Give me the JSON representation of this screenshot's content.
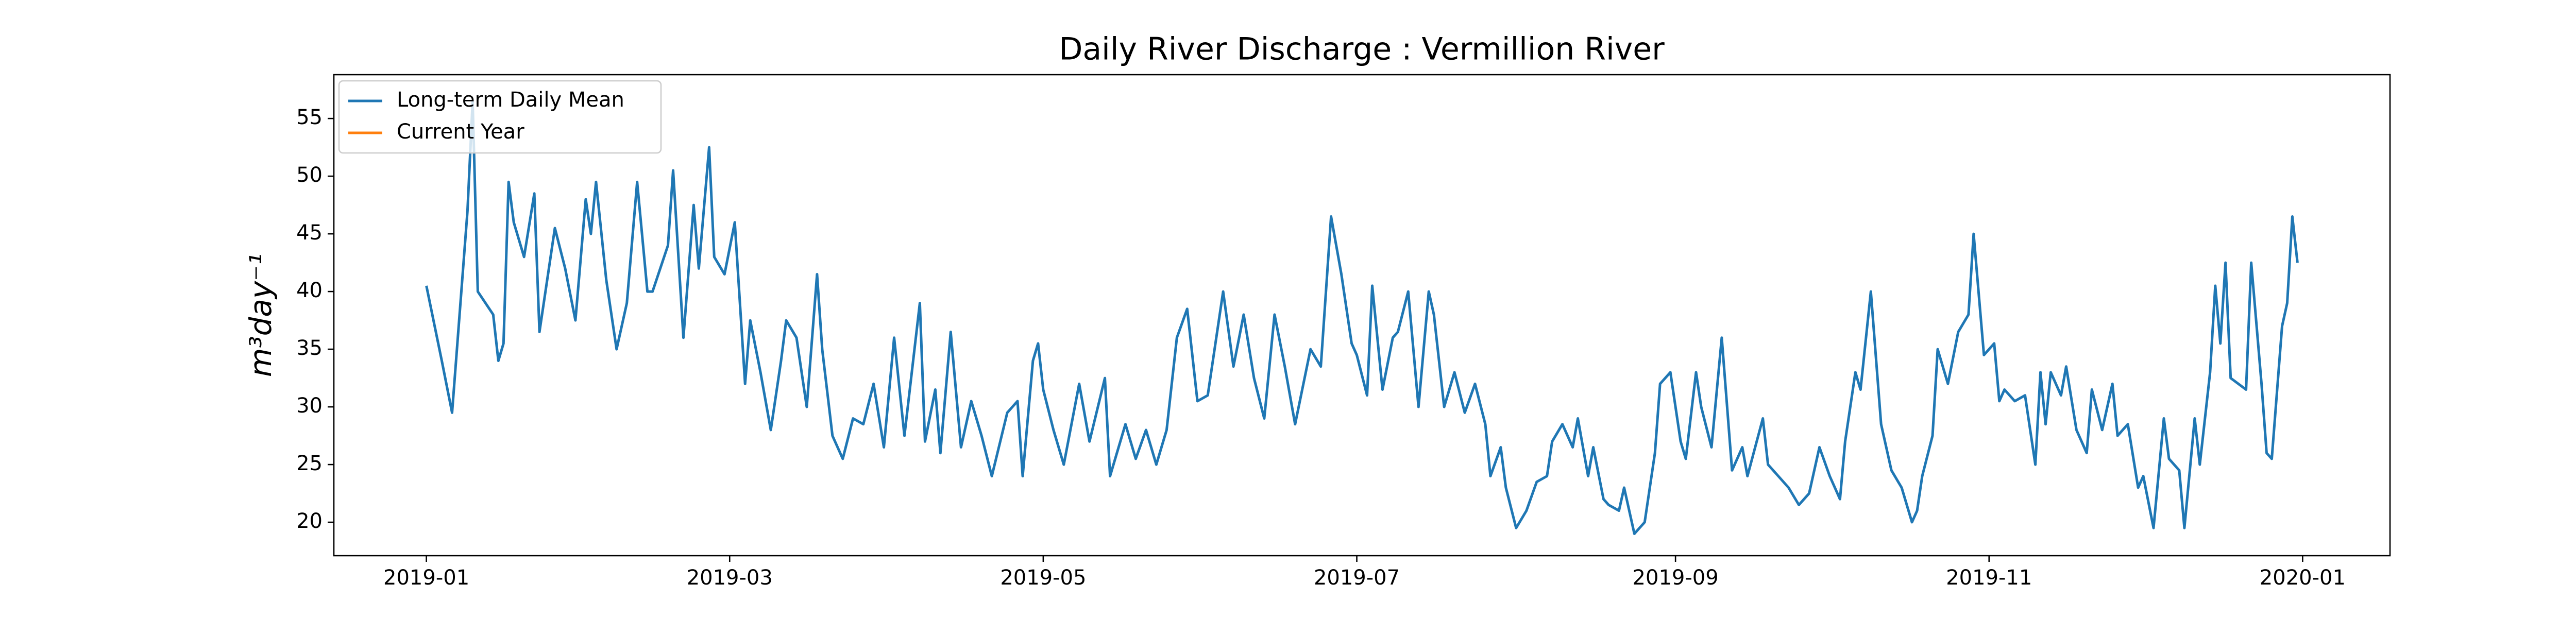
{
  "chart_data": {
    "type": "line",
    "title": "Daily River Discharge : Vermillion River",
    "ylabel": "m³day⁻¹",
    "x": [
      0,
      3,
      5,
      8,
      9,
      10,
      13,
      14,
      15,
      16,
      17,
      19,
      21,
      22,
      25,
      27,
      29,
      31,
      32,
      33,
      35,
      37,
      39,
      41,
      43,
      44,
      47,
      48,
      50,
      52,
      53,
      55,
      56,
      58,
      60,
      62,
      63,
      65,
      67,
      69,
      70,
      72,
      74,
      76,
      77,
      79,
      81,
      83,
      85,
      87,
      89,
      91,
      93,
      96,
      97,
      99,
      100,
      102,
      104,
      106,
      108,
      110,
      113,
      115,
      116,
      118,
      119,
      120,
      122,
      124,
      127,
      129,
      132,
      133,
      136,
      138,
      140,
      142,
      144,
      146,
      148,
      150,
      152,
      155,
      157,
      159,
      161,
      163,
      165,
      167,
      169,
      172,
      174,
      176,
      178,
      180,
      181,
      183,
      184,
      186,
      188,
      189,
      191,
      193,
      195,
      196,
      198,
      200,
      202,
      204,
      206,
      207,
      209,
      210,
      212,
      214,
      216,
      218,
      219,
      221,
      223,
      224,
      226,
      227,
      229,
      230,
      232,
      233,
      235,
      237,
      239,
      240,
      242,
      244,
      245,
      247,
      248,
      250,
      252,
      254,
      256,
      257,
      260,
      261,
      263,
      265,
      267,
      269,
      271,
      273,
      275,
      276,
      278,
      279,
      281,
      283,
      285,
      287,
      289,
      290,
      291,
      293,
      294,
      296,
      298,
      300,
      301,
      303,
      305,
      306,
      307,
      309,
      311,
      313,
      314,
      315,
      316,
      318,
      319,
      321,
      323,
      324,
      326,
      328,
      329,
      331,
      333,
      334,
      336,
      338,
      339,
      341,
      342,
      344,
      345,
      347,
      348,
      349,
      350,
      351,
      354,
      355,
      357,
      358,
      359,
      361,
      362,
      363,
      364
    ],
    "series": [
      {
        "name": "Long-term Daily Mean",
        "color": "#1f77b4",
        "values": [
          40.5,
          34,
          29.5,
          47,
          56.5,
          40,
          38,
          34,
          35.5,
          49.5,
          46,
          43,
          48.5,
          36.5,
          45.5,
          42,
          37.5,
          48,
          45,
          49.5,
          41,
          35,
          39,
          49.5,
          40,
          40,
          44,
          50.5,
          36,
          47.5,
          42,
          52.5,
          43,
          41.5,
          46,
          32,
          37.5,
          33,
          28,
          34,
          37.5,
          36,
          30,
          41.5,
          35,
          27.5,
          25.5,
          29,
          28.5,
          32,
          26.5,
          36,
          27.5,
          39,
          27,
          31.5,
          26,
          36.5,
          26.5,
          30.5,
          27.5,
          24,
          29.5,
          30.5,
          24,
          34,
          35.5,
          31.5,
          28,
          25,
          32,
          27,
          32.5,
          24,
          28.5,
          25.5,
          28,
          25,
          28,
          36,
          38.5,
          30.5,
          31,
          40,
          33.5,
          38,
          32.5,
          29,
          38,
          33.5,
          28.5,
          35,
          33.5,
          46.5,
          41.5,
          35.5,
          34.5,
          31,
          40.5,
          31.5,
          36,
          36.5,
          40,
          30,
          40,
          38,
          30,
          33,
          29.5,
          32,
          28.5,
          24,
          26.5,
          23,
          19.5,
          21,
          23.5,
          24,
          27,
          28.5,
          26.5,
          29,
          24,
          26.5,
          22,
          21.5,
          21,
          23,
          19,
          20,
          26,
          32,
          33,
          27,
          25.5,
          33,
          30,
          26.5,
          36,
          24.5,
          26.5,
          24,
          29,
          25,
          24,
          23,
          21.5,
          22.5,
          26.5,
          24,
          22,
          27,
          33,
          31.5,
          40,
          28.5,
          24.5,
          23,
          20,
          21,
          24,
          27.5,
          35,
          32,
          36.5,
          38,
          45,
          34.5,
          35.5,
          30.5,
          31.5,
          30.5,
          31,
          25,
          33,
          28.5,
          33,
          31,
          33.5,
          28,
          26,
          31.5,
          28,
          32,
          27.5,
          28.5,
          23,
          24,
          19.5,
          29,
          25.5,
          24.5,
          19.5,
          29,
          25,
          33,
          40.5,
          35.5,
          42.5,
          32.5,
          31.5,
          42.5,
          32,
          26,
          25.5,
          37,
          39,
          46.5,
          42.5
        ]
      },
      {
        "name": "Current Year",
        "color": "#ff7f0e",
        "values": [
          null,
          null,
          null,
          null,
          null,
          null,
          null,
          null,
          null,
          null,
          null,
          null,
          null,
          null,
          null,
          null,
          null,
          null,
          null,
          null,
          null,
          null,
          null,
          null,
          null,
          null,
          null,
          null,
          null,
          null,
          null,
          null,
          null,
          null,
          null,
          null,
          null,
          null,
          null,
          null,
          null,
          null,
          null,
          null,
          null,
          null,
          null,
          null,
          null,
          null,
          null,
          null,
          null,
          null,
          null,
          null,
          null,
          null,
          null,
          null,
          null,
          null,
          null,
          null,
          null,
          null,
          null,
          null,
          null,
          null,
          null,
          null,
          null,
          null,
          null,
          null,
          null,
          null,
          null,
          null,
          null,
          null,
          null,
          null,
          null,
          null,
          null,
          null,
          null,
          null,
          null,
          null,
          null,
          null,
          null,
          null,
          null,
          null,
          null,
          null,
          null,
          null,
          null,
          null,
          null,
          null,
          null,
          null,
          null,
          null,
          null,
          null,
          null,
          null,
          null,
          null,
          null,
          null,
          null,
          null,
          null,
          null,
          null,
          null,
          null,
          null,
          null,
          null,
          null,
          null,
          null,
          null,
          null,
          null,
          null,
          null,
          null,
          null,
          null,
          null,
          null,
          null,
          null,
          null,
          null,
          null,
          null,
          null,
          null,
          null,
          null,
          null,
          null,
          null,
          null,
          null,
          null,
          null,
          null,
          null,
          null,
          null,
          null,
          null,
          null,
          null,
          null,
          null,
          null,
          null,
          null,
          null,
          null,
          null,
          null,
          null,
          null,
          null,
          null,
          null,
          null,
          null,
          null,
          null,
          null,
          null,
          null,
          null,
          null,
          null,
          null,
          null,
          null,
          null,
          null,
          null,
          null,
          null,
          null,
          null,
          null,
          null,
          null,
          null,
          null,
          null,
          null,
          null,
          null
        ]
      }
    ],
    "xlim": [
      -18,
      382
    ],
    "xticks": [
      {
        "value": 0,
        "label": "2019-01"
      },
      {
        "value": 59,
        "label": "2019-03"
      },
      {
        "value": 120,
        "label": "2019-05"
      },
      {
        "value": 181,
        "label": "2019-07"
      },
      {
        "value": 243,
        "label": "2019-09"
      },
      {
        "value": 304,
        "label": "2019-11"
      },
      {
        "value": 365,
        "label": "2020-01"
      }
    ],
    "ylim": [
      17.1,
      58.8
    ],
    "yticks": [
      20,
      25,
      30,
      35,
      40,
      45,
      50,
      55
    ],
    "legend": "upper left",
    "grid": false
  }
}
